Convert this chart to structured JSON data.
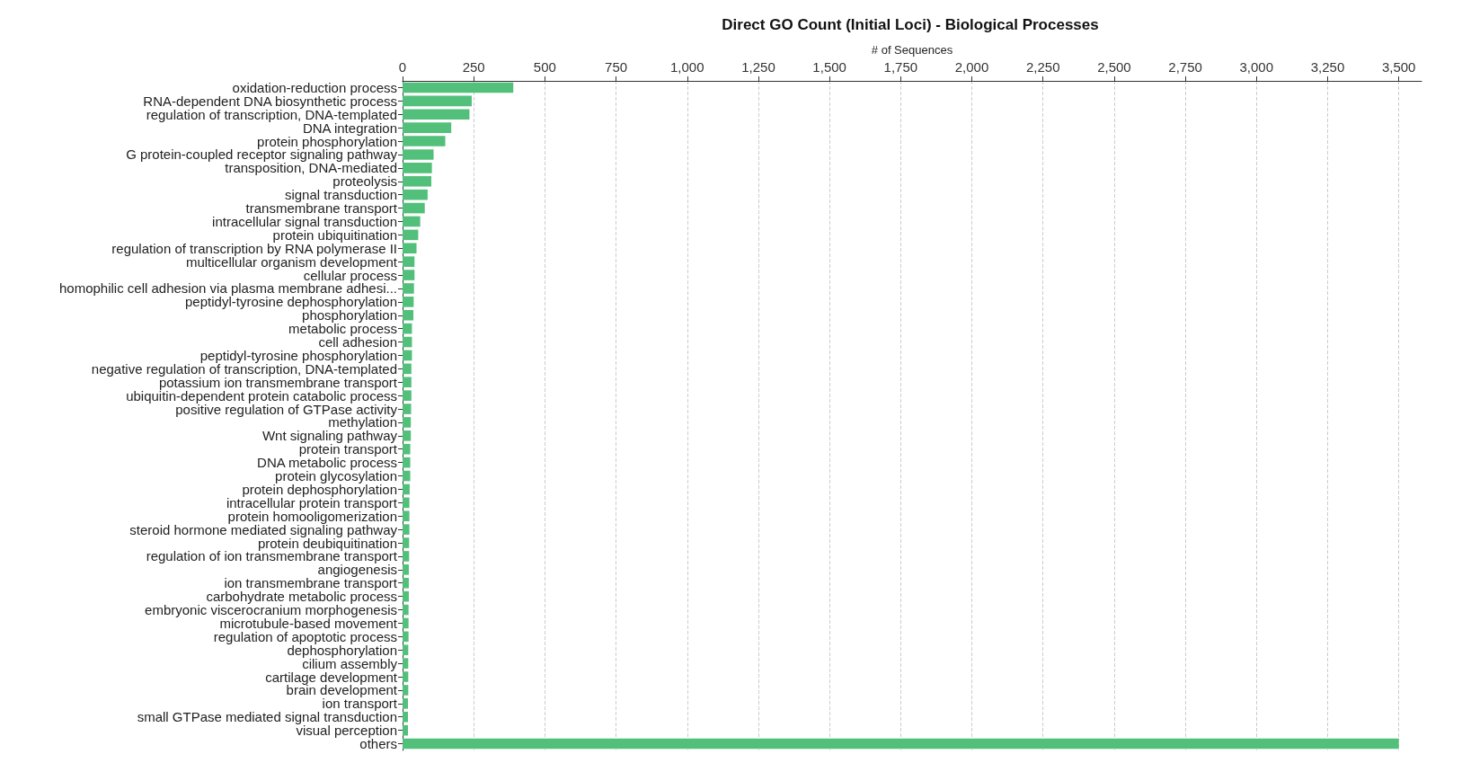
{
  "chart_data": {
    "type": "bar",
    "orientation": "horizontal",
    "title": "Direct GO Count (Initial Loci) - Biological Processes",
    "xlabel": "# of Sequences",
    "categories": [
      "oxidation-reduction process",
      "RNA-dependent DNA biosynthetic process",
      "regulation of transcription, DNA-templated",
      "DNA integration",
      "protein phosphorylation",
      "G protein-coupled receptor signaling pathway",
      "transposition, DNA-mediated",
      "proteolysis",
      "signal transduction",
      "transmembrane transport",
      "intracellular signal transduction",
      "protein ubiquitination",
      "regulation of transcription by RNA polymerase II",
      "multicellular organism development",
      "cellular process",
      "homophilic cell adhesion via plasma membrane adhesi...",
      "peptidyl-tyrosine dephosphorylation",
      "phosphorylation",
      "metabolic process",
      "cell adhesion",
      "peptidyl-tyrosine phosphorylation",
      "negative regulation of transcription, DNA-templated",
      "potassium ion transmembrane transport",
      "ubiquitin-dependent protein catabolic process",
      "positive regulation of GTPase activity",
      "methylation",
      "Wnt signaling pathway",
      "protein transport",
      "DNA metabolic process",
      "protein glycosylation",
      "protein dephosphorylation",
      "intracellular protein transport",
      "protein homooligomerization",
      "steroid hormone mediated signaling pathway",
      "protein deubiquitination",
      "regulation of ion transmembrane transport",
      "angiogenesis",
      "ion transmembrane transport",
      "carbohydrate metabolic process",
      "embryonic viscerocranium morphogenesis",
      "microtubule-based movement",
      "regulation of apoptotic process",
      "dephosphorylation",
      "cilium assembly",
      "cartilage development",
      "brain development",
      "ion transport",
      "small GTPase mediated signal transduction",
      "visual perception",
      "others"
    ],
    "values": [
      389,
      243,
      235,
      171,
      150,
      109,
      103,
      101,
      88,
      78,
      62,
      55,
      49,
      42,
      42,
      40,
      39,
      38,
      33,
      33,
      33,
      31,
      31,
      31,
      30,
      29,
      29,
      27,
      27,
      27,
      25,
      24,
      24,
      24,
      23,
      23,
      22,
      22,
      22,
      21,
      21,
      21,
      20,
      20,
      20,
      20,
      19,
      19,
      19,
      3500
    ],
    "color": "#52bf7a",
    "xlim": [
      0,
      3580
    ],
    "xticks": [
      0,
      250,
      500,
      750,
      {
        "value": 1000,
        "label": "1,000"
      },
      {
        "value": 1250,
        "label": "1,250"
      },
      {
        "value": 1500,
        "label": "1,500"
      },
      {
        "value": 1750,
        "label": "1,750"
      },
      {
        "value": 2000,
        "label": "2,000"
      },
      {
        "value": 2250,
        "label": "2,250"
      },
      {
        "value": 2500,
        "label": "2,500"
      },
      {
        "value": 2750,
        "label": "2,750"
      },
      {
        "value": 3000,
        "label": "3,000"
      },
      {
        "value": 3250,
        "label": "3,250"
      },
      {
        "value": 3500,
        "label": "3,500"
      }
    ],
    "grid": "x"
  }
}
